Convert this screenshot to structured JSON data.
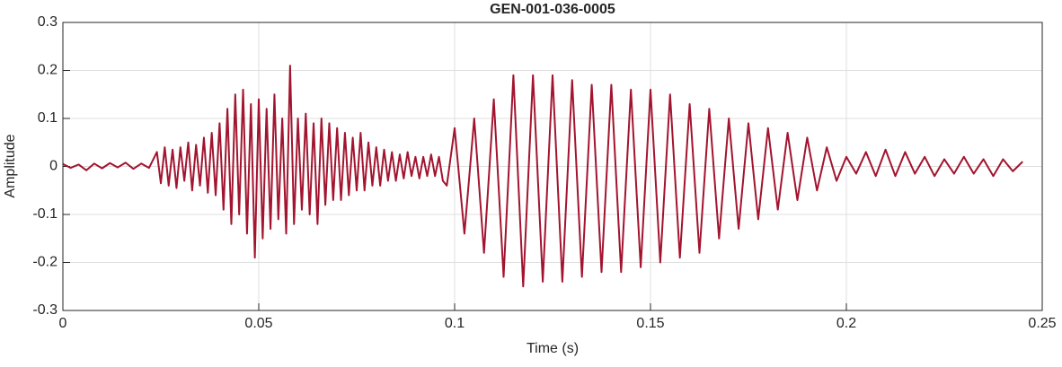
{
  "chart_data": {
    "type": "line",
    "title": "GEN-001-036-0005",
    "x_label": "Time (s)",
    "y_label": "Amplitude",
    "xlim": [
      0,
      0.25
    ],
    "xticks": [
      0,
      0.05,
      0.1,
      0.15,
      0.2,
      0.25
    ],
    "ylim": [
      -0.3,
      0.3
    ],
    "yticks": [
      -0.3,
      -0.2,
      -0.1,
      0,
      0.1,
      0.2,
      0.3
    ],
    "grid": true,
    "series": [
      {
        "name": "GEN-001-036-0005",
        "color": "#a2142f",
        "x": [
          0,
          0.002,
          0.004,
          0.006,
          0.008,
          0.01,
          0.012,
          0.014,
          0.016,
          0.018,
          0.02,
          0.022,
          0.024,
          0.025,
          0.026,
          0.027,
          0.028,
          0.029,
          0.03,
          0.031,
          0.032,
          0.033,
          0.034,
          0.035,
          0.036,
          0.037,
          0.038,
          0.039,
          0.04,
          0.041,
          0.042,
          0.043,
          0.044,
          0.045,
          0.046,
          0.047,
          0.048,
          0.049,
          0.05,
          0.051,
          0.052,
          0.053,
          0.054,
          0.055,
          0.056,
          0.057,
          0.058,
          0.059,
          0.06,
          0.061,
          0.062,
          0.063,
          0.064,
          0.065,
          0.066,
          0.067,
          0.068,
          0.069,
          0.07,
          0.071,
          0.072,
          0.073,
          0.074,
          0.075,
          0.076,
          0.077,
          0.078,
          0.079,
          0.08,
          0.081,
          0.082,
          0.083,
          0.084,
          0.085,
          0.086,
          0.087,
          0.088,
          0.089,
          0.09,
          0.091,
          0.092,
          0.093,
          0.094,
          0.095,
          0.096,
          0.097,
          0.098,
          0.1,
          0.1025,
          0.105,
          0.1075,
          0.11,
          0.1125,
          0.115,
          0.1175,
          0.12,
          0.1225,
          0.125,
          0.1275,
          0.13,
          0.1325,
          0.135,
          0.1375,
          0.14,
          0.1425,
          0.145,
          0.1475,
          0.15,
          0.1525,
          0.155,
          0.1575,
          0.16,
          0.1625,
          0.165,
          0.1675,
          0.17,
          0.1725,
          0.175,
          0.1775,
          0.18,
          0.1825,
          0.185,
          0.1875,
          0.19,
          0.1925,
          0.195,
          0.1975,
          0.2,
          0.2025,
          0.205,
          0.2075,
          0.21,
          0.2125,
          0.215,
          0.2175,
          0.22,
          0.2225,
          0.225,
          0.2275,
          0.23,
          0.2325,
          0.235,
          0.2375,
          0.24,
          0.2425,
          0.245
        ],
        "values": [
          0.005,
          -0.003,
          0.004,
          -0.008,
          0.006,
          -0.004,
          0.007,
          -0.002,
          0.008,
          -0.005,
          0.006,
          -0.003,
          0.03,
          -0.035,
          0.04,
          -0.04,
          0.035,
          -0.045,
          0.04,
          -0.03,
          0.05,
          -0.05,
          0.045,
          -0.04,
          0.06,
          -0.055,
          0.07,
          -0.06,
          0.09,
          -0.09,
          0.12,
          -0.12,
          0.15,
          -0.1,
          0.16,
          -0.14,
          0.13,
          -0.19,
          0.14,
          -0.15,
          0.12,
          -0.13,
          0.15,
          -0.11,
          0.1,
          -0.14,
          0.21,
          -0.12,
          0.1,
          -0.09,
          0.11,
          -0.1,
          0.09,
          -0.12,
          0.1,
          -0.08,
          0.09,
          -0.07,
          0.08,
          -0.07,
          0.07,
          -0.06,
          0.06,
          -0.05,
          0.07,
          -0.05,
          0.05,
          -0.04,
          0.04,
          -0.04,
          0.035,
          -0.03,
          0.03,
          -0.03,
          0.025,
          -0.025,
          0.03,
          -0.02,
          0.02,
          -0.025,
          0.02,
          -0.02,
          0.025,
          -0.02,
          0.02,
          -0.03,
          -0.04,
          0.08,
          -0.14,
          0.1,
          -0.18,
          0.14,
          -0.23,
          0.19,
          -0.25,
          0.19,
          -0.24,
          0.19,
          -0.24,
          0.18,
          -0.23,
          0.17,
          -0.22,
          0.17,
          -0.22,
          0.16,
          -0.21,
          0.16,
          -0.2,
          0.15,
          -0.19,
          0.13,
          -0.18,
          0.12,
          -0.15,
          0.1,
          -0.13,
          0.09,
          -0.11,
          0.08,
          -0.09,
          0.07,
          -0.07,
          0.06,
          -0.05,
          0.04,
          -0.03,
          0.02,
          -0.015,
          0.03,
          -0.02,
          0.035,
          -0.02,
          0.03,
          -0.015,
          0.02,
          -0.02,
          0.015,
          -0.015,
          0.02,
          -0.015,
          0.015,
          -0.02,
          0.015,
          -0.01,
          0.01
        ]
      }
    ]
  }
}
